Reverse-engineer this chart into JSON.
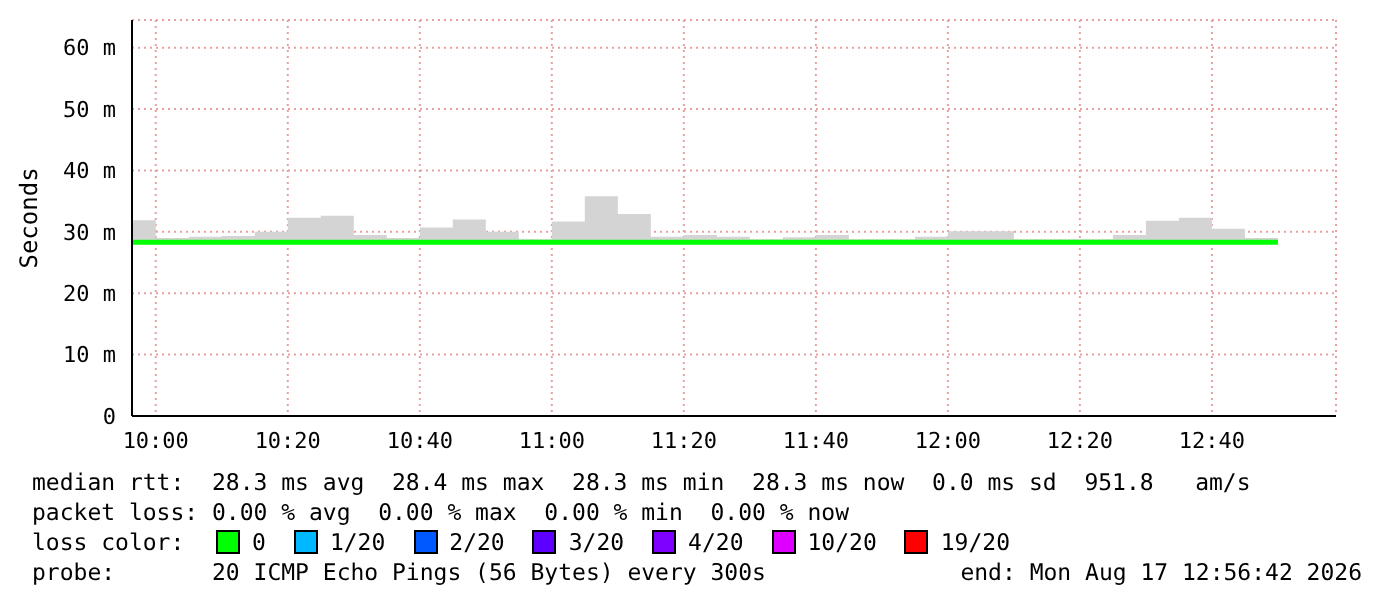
{
  "chart_data": {
    "type": "step",
    "ylabel": "Seconds",
    "x": [
      9.94,
      10,
      10.0833,
      10.1667,
      10.25,
      10.3333,
      10.4167,
      10.5,
      10.5833,
      10.6667,
      10.75,
      10.8333,
      10.9167,
      11,
      11.0833,
      11.1667,
      11.25,
      11.3333,
      11.4167,
      11.5,
      11.5833,
      11.6667,
      11.75,
      11.8333,
      11.9167,
      12,
      12.0833,
      12.1667,
      12.25,
      12.3333,
      12.4167,
      12.5,
      12.5833,
      12.6667,
      12.75,
      12.8333
    ],
    "xlim": [
      9.94,
      12.98
    ],
    "xticks": [
      {
        "value": 10,
        "label": "10:00"
      },
      {
        "value": 10.3333,
        "label": "10:20"
      },
      {
        "value": 10.6667,
        "label": "10:40"
      },
      {
        "value": 11,
        "label": "11:00"
      },
      {
        "value": 11.3333,
        "label": "11:20"
      },
      {
        "value": 11.6667,
        "label": "11:40"
      },
      {
        "value": 12,
        "label": "12:00"
      },
      {
        "value": 12.3333,
        "label": "12:20"
      },
      {
        "value": 12.6667,
        "label": "12:40"
      }
    ],
    "ylim": [
      0,
      64.5
    ],
    "yticks": [
      0,
      {
        "value": 10,
        "label": "10 m"
      },
      {
        "value": 20,
        "label": "20 m"
      },
      {
        "value": 30,
        "label": "30 m"
      },
      {
        "value": 40,
        "label": "40 m"
      },
      {
        "value": 50,
        "label": "50 m"
      },
      {
        "value": 60,
        "label": "60 m"
      }
    ],
    "grid": true,
    "legend": "bottom",
    "series": [
      {
        "name": "0",
        "color": "#00ff00",
        "values": [
          28.3,
          28.3,
          28.3,
          28.3,
          28.3,
          28.3,
          28.3,
          28.3,
          28.3,
          28.3,
          28.3,
          28.3,
          28.3,
          28.3,
          28.3,
          28.3,
          28.3,
          28.3,
          28.3,
          28.3,
          28.3,
          28.3,
          28.3,
          28.3,
          28.3,
          28.3,
          28.3,
          28.3,
          28.3,
          28.3,
          28.3,
          28.3,
          28.3,
          28.3,
          28.3,
          28.3
        ],
        "lower": [
          28.2,
          28.2,
          28.2,
          28.2,
          28.2,
          28.2,
          28.2,
          28.2,
          28.2,
          28.2,
          28.2,
          28.2,
          28.2,
          28.2,
          28.2,
          28.2,
          28.2,
          28.2,
          28.2,
          28.2,
          28.2,
          28.2,
          28.2,
          28.2,
          28.2,
          28.2,
          28.2,
          28.2,
          28.2,
          28.2,
          28.2,
          28.2,
          28.2,
          28.2,
          28.2,
          28.2
        ],
        "upper": [
          31.9,
          29,
          29.2,
          29.3,
          30,
          32.3,
          32.6,
          29.5,
          29,
          30.7,
          32,
          30,
          28.8,
          31.7,
          35.8,
          32.9,
          29.2,
          29.5,
          29.2,
          28.8,
          29.1,
          29.5,
          28.8,
          28.8,
          29.2,
          30.1,
          30.1,
          28.8,
          28.8,
          28.8,
          29.5,
          31.8,
          32.3,
          30.5,
          29,
          29
        ]
      },
      {
        "name": "1/20",
        "color": "#00b8ff",
        "values": [
          null,
          null,
          null,
          null,
          null,
          null,
          null,
          null,
          null,
          null,
          null,
          null,
          null,
          null,
          null,
          null,
          null,
          null,
          null,
          null,
          null,
          null,
          null,
          null,
          null,
          null,
          null,
          null,
          null,
          null,
          null,
          null,
          null,
          null,
          null,
          null
        ]
      },
      {
        "name": "2/20",
        "color": "#0059ff",
        "values": [
          null,
          null,
          null,
          null,
          null,
          null,
          null,
          null,
          null,
          null,
          null,
          null,
          null,
          null,
          null,
          null,
          null,
          null,
          null,
          null,
          null,
          null,
          null,
          null,
          null,
          null,
          null,
          null,
          null,
          null,
          null,
          null,
          null,
          null,
          null,
          null
        ]
      },
      {
        "name": "3/20",
        "color": "#5e00ff",
        "values": [
          null,
          null,
          null,
          null,
          null,
          null,
          null,
          null,
          null,
          null,
          null,
          null,
          null,
          null,
          null,
          null,
          null,
          null,
          null,
          null,
          null,
          null,
          null,
          null,
          null,
          null,
          null,
          null,
          null,
          null,
          null,
          null,
          null,
          null,
          null,
          null
        ]
      },
      {
        "name": "4/20",
        "color": "#7e00ff",
        "values": [
          null,
          null,
          null,
          null,
          null,
          null,
          null,
          null,
          null,
          null,
          null,
          null,
          null,
          null,
          null,
          null,
          null,
          null,
          null,
          null,
          null,
          null,
          null,
          null,
          null,
          null,
          null,
          null,
          null,
          null,
          null,
          null,
          null,
          null,
          null,
          null
        ]
      },
      {
        "name": "10/20",
        "color": "#dd00ff",
        "values": [
          null,
          null,
          null,
          null,
          null,
          null,
          null,
          null,
          null,
          null,
          null,
          null,
          null,
          null,
          null,
          null,
          null,
          null,
          null,
          null,
          null,
          null,
          null,
          null,
          null,
          null,
          null,
          null,
          null,
          null,
          null,
          null,
          null,
          null,
          null,
          null
        ]
      },
      {
        "name": "19/20",
        "color": "#ff0000",
        "values": [
          null,
          null,
          null,
          null,
          null,
          null,
          null,
          null,
          null,
          null,
          null,
          null,
          null,
          null,
          null,
          null,
          null,
          null,
          null,
          null,
          null,
          null,
          null,
          null,
          null,
          null,
          null,
          null,
          null,
          null,
          null,
          null,
          null,
          null,
          null,
          null
        ]
      }
    ],
    "annotations": [
      "median rtt:  28.3 ms avg  28.4 ms max  28.3 ms min  28.3 ms now  0.0 ms sd  951.8   am/s",
      "packet loss: 0.00 % avg  0.00 % max  0.00 % min  0.00 % now",
      "loss color:",
      "probe:       20 ICMP Echo Pings (56 Bytes) every 300s",
      "end: Mon Aug 17 12:56:42 2026"
    ]
  }
}
